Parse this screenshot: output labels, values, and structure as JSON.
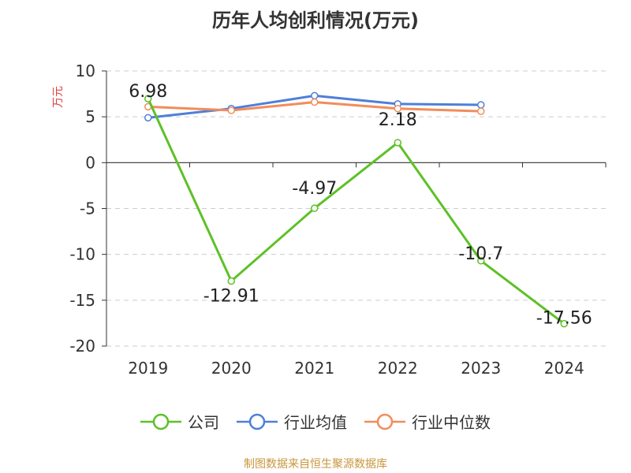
{
  "chart_data": {
    "type": "line",
    "title": "历年人均创利情况(万元)",
    "ylabel": "万元",
    "categories": [
      "2019",
      "2020",
      "2021",
      "2022",
      "2023",
      "2024"
    ],
    "ylim": [
      -20,
      10
    ],
    "yticks": [
      10,
      5,
      0,
      -5,
      -10,
      -15,
      -20
    ],
    "grid": true,
    "legend_position": "bottom",
    "series": [
      {
        "name": "公司",
        "color": "#5dc126",
        "values": [
          6.98,
          -12.91,
          -4.97,
          2.18,
          -10.7,
          -17.56
        ],
        "labels": [
          "6.98",
          "-12.91",
          "-4.97",
          "2.18",
          "-10.7",
          "-17.56"
        ]
      },
      {
        "name": "行业均值",
        "color": "#4e7fd8",
        "values": [
          4.9,
          5.9,
          7.3,
          6.4,
          6.3,
          null
        ]
      },
      {
        "name": "行业中位数",
        "color": "#f28c5a",
        "values": [
          6.1,
          5.7,
          6.6,
          5.9,
          5.6,
          null
        ]
      }
    ]
  },
  "source_note": "制图数据来自恒生聚源数据库"
}
